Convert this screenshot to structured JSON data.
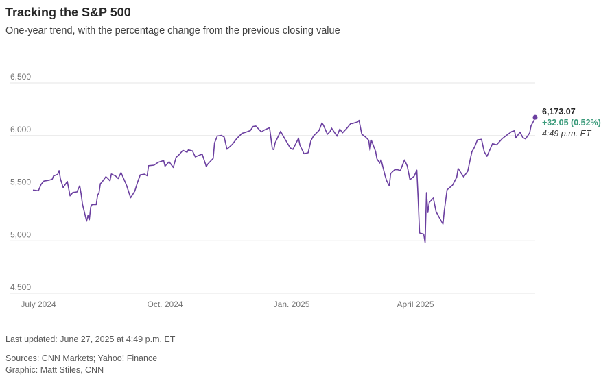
{
  "title": "Tracking the S&P 500",
  "subtitle": "One-year trend, with the percentage change from the previous closing value",
  "footer": {
    "updated": "Last updated: June 27, 2025 at 4:49 p.m. ET",
    "sources": "Sources: CNN Markets; Yahoo! Finance",
    "graphic": "Graphic: Matt Stiles, CNN"
  },
  "colors": {
    "line": "#6b3fa0",
    "positive": "#3a9a7a",
    "grid": "#e6e6e6"
  },
  "chart_data": {
    "type": "line",
    "title": "Tracking the S&P 500",
    "ylim": [
      4500,
      6500
    ],
    "yticks": [
      4500,
      5000,
      5500,
      6000,
      6500
    ],
    "ytick_labels": [
      "4,500",
      "5,000",
      "5,500",
      "6,000",
      "6,500"
    ],
    "xticks": [
      {
        "date": "2024-07-01",
        "label": "July 2024"
      },
      {
        "date": "2024-10-01",
        "label": "Oct. 2024"
      },
      {
        "date": "2025-01-01",
        "label": "Jan. 2025"
      },
      {
        "date": "2025-04-01",
        "label": "April 2025"
      }
    ],
    "grid": true,
    "series": [
      {
        "points": [
          [
            "2024-06-27",
            5482
          ],
          [
            "2024-07-01",
            5475
          ],
          [
            "2024-07-03",
            5537
          ],
          [
            "2024-07-05",
            5567
          ],
          [
            "2024-07-09",
            5576
          ],
          [
            "2024-07-11",
            5585
          ],
          [
            "2024-07-12",
            5615
          ],
          [
            "2024-07-15",
            5631
          ],
          [
            "2024-07-16",
            5667
          ],
          [
            "2024-07-17",
            5588
          ],
          [
            "2024-07-19",
            5505
          ],
          [
            "2024-07-22",
            5564
          ],
          [
            "2024-07-24",
            5427
          ],
          [
            "2024-07-26",
            5459
          ],
          [
            "2024-07-29",
            5464
          ],
          [
            "2024-07-31",
            5522
          ],
          [
            "2024-08-01",
            5446
          ],
          [
            "2024-08-02",
            5347
          ],
          [
            "2024-08-05",
            5186
          ],
          [
            "2024-08-06",
            5240
          ],
          [
            "2024-08-07",
            5199
          ],
          [
            "2024-08-08",
            5319
          ],
          [
            "2024-08-09",
            5344
          ],
          [
            "2024-08-12",
            5344
          ],
          [
            "2024-08-13",
            5434
          ],
          [
            "2024-08-14",
            5455
          ],
          [
            "2024-08-15",
            5543
          ],
          [
            "2024-08-16",
            5554
          ],
          [
            "2024-08-19",
            5608
          ],
          [
            "2024-08-20",
            5597
          ],
          [
            "2024-08-22",
            5570
          ],
          [
            "2024-08-23",
            5634
          ],
          [
            "2024-08-26",
            5616
          ],
          [
            "2024-08-28",
            5592
          ],
          [
            "2024-08-30",
            5648
          ],
          [
            "2024-09-03",
            5528
          ],
          [
            "2024-09-06",
            5408
          ],
          [
            "2024-09-09",
            5471
          ],
          [
            "2024-09-11",
            5554
          ],
          [
            "2024-09-13",
            5626
          ],
          [
            "2024-09-16",
            5633
          ],
          [
            "2024-09-18",
            5618
          ],
          [
            "2024-09-19",
            5713
          ],
          [
            "2024-09-23",
            5718
          ],
          [
            "2024-09-26",
            5745
          ],
          [
            "2024-09-30",
            5762
          ],
          [
            "2024-10-01",
            5709
          ],
          [
            "2024-10-04",
            5751
          ],
          [
            "2024-10-07",
            5696
          ],
          [
            "2024-10-09",
            5792
          ],
          [
            "2024-10-11",
            5815
          ],
          [
            "2024-10-14",
            5859
          ],
          [
            "2024-10-17",
            5841
          ],
          [
            "2024-10-18",
            5864
          ],
          [
            "2024-10-21",
            5853
          ],
          [
            "2024-10-23",
            5797
          ],
          [
            "2024-10-25",
            5808
          ],
          [
            "2024-10-28",
            5823
          ],
          [
            "2024-10-31",
            5705
          ],
          [
            "2024-11-01",
            5728
          ],
          [
            "2024-11-05",
            5782
          ],
          [
            "2024-11-06",
            5929
          ],
          [
            "2024-11-08",
            5995
          ],
          [
            "2024-11-11",
            6001
          ],
          [
            "2024-11-13",
            5985
          ],
          [
            "2024-11-15",
            5870
          ],
          [
            "2024-11-19",
            5917
          ],
          [
            "2024-11-22",
            5969
          ],
          [
            "2024-11-26",
            6021
          ],
          [
            "2024-11-29",
            6032
          ],
          [
            "2024-12-02",
            6047
          ],
          [
            "2024-12-04",
            6086
          ],
          [
            "2024-12-06",
            6090
          ],
          [
            "2024-12-10",
            6034
          ],
          [
            "2024-12-12",
            6051
          ],
          [
            "2024-12-16",
            6074
          ],
          [
            "2024-12-18",
            5872
          ],
          [
            "2024-12-19",
            5867
          ],
          [
            "2024-12-20",
            5930
          ],
          [
            "2024-12-24",
            6040
          ],
          [
            "2024-12-27",
            5970
          ],
          [
            "2024-12-31",
            5882
          ],
          [
            "2025-01-02",
            5869
          ],
          [
            "2025-01-06",
            5975
          ],
          [
            "2025-01-07",
            5909
          ],
          [
            "2025-01-10",
            5827
          ],
          [
            "2025-01-13",
            5836
          ],
          [
            "2025-01-15",
            5950
          ],
          [
            "2025-01-17",
            5997
          ],
          [
            "2025-01-21",
            6049
          ],
          [
            "2025-01-23",
            6119
          ],
          [
            "2025-01-24",
            6101
          ],
          [
            "2025-01-27",
            6012
          ],
          [
            "2025-01-29",
            6039
          ],
          [
            "2025-01-30",
            6071
          ],
          [
            "2025-02-03",
            5994
          ],
          [
            "2025-02-05",
            6061
          ],
          [
            "2025-02-07",
            6026
          ],
          [
            "2025-02-10",
            6066
          ],
          [
            "2025-02-13",
            6115
          ],
          [
            "2025-02-14",
            6114
          ],
          [
            "2025-02-18",
            6129
          ],
          [
            "2025-02-19",
            6144
          ],
          [
            "2025-02-21",
            6013
          ],
          [
            "2025-02-24",
            5983
          ],
          [
            "2025-02-26",
            5956
          ],
          [
            "2025-02-27",
            5861
          ],
          [
            "2025-02-28",
            5955
          ],
          [
            "2025-03-03",
            5849
          ],
          [
            "2025-03-04",
            5778
          ],
          [
            "2025-03-06",
            5738
          ],
          [
            "2025-03-07",
            5770
          ],
          [
            "2025-03-10",
            5615
          ],
          [
            "2025-03-11",
            5572
          ],
          [
            "2025-03-13",
            5522
          ],
          [
            "2025-03-14",
            5639
          ],
          [
            "2025-03-17",
            5675
          ],
          [
            "2025-03-19",
            5675
          ],
          [
            "2025-03-21",
            5667
          ],
          [
            "2025-03-24",
            5768
          ],
          [
            "2025-03-26",
            5712
          ],
          [
            "2025-03-28",
            5581
          ],
          [
            "2025-03-31",
            5612
          ],
          [
            "2025-04-02",
            5671
          ],
          [
            "2025-04-03",
            5397
          ],
          [
            "2025-04-04",
            5074
          ],
          [
            "2025-04-07",
            5062
          ],
          [
            "2025-04-08",
            4982
          ],
          [
            "2025-04-09",
            5457
          ],
          [
            "2025-04-10",
            5268
          ],
          [
            "2025-04-11",
            5363
          ],
          [
            "2025-04-14",
            5406
          ],
          [
            "2025-04-16",
            5276
          ],
          [
            "2025-04-21",
            5158
          ],
          [
            "2025-04-22",
            5287
          ],
          [
            "2025-04-24",
            5484
          ],
          [
            "2025-04-28",
            5529
          ],
          [
            "2025-05-01",
            5604
          ],
          [
            "2025-05-02",
            5687
          ],
          [
            "2025-05-06",
            5607
          ],
          [
            "2025-05-09",
            5660
          ],
          [
            "2025-05-12",
            5844
          ],
          [
            "2025-05-14",
            5892
          ],
          [
            "2025-05-16",
            5958
          ],
          [
            "2025-05-19",
            5964
          ],
          [
            "2025-05-21",
            5845
          ],
          [
            "2025-05-23",
            5802
          ],
          [
            "2025-05-27",
            5922
          ],
          [
            "2025-05-30",
            5912
          ],
          [
            "2025-06-03",
            5970
          ],
          [
            "2025-06-06",
            6000
          ],
          [
            "2025-06-10",
            6038
          ],
          [
            "2025-06-12",
            6045
          ],
          [
            "2025-06-13",
            5977
          ],
          [
            "2025-06-16",
            6033
          ],
          [
            "2025-06-18",
            5981
          ],
          [
            "2025-06-20",
            5968
          ],
          [
            "2025-06-23",
            6025
          ],
          [
            "2025-06-24",
            6092
          ],
          [
            "2025-06-26",
            6141
          ],
          [
            "2025-06-27",
            6173.07
          ]
        ],
        "last_value": "6,173.07",
        "last_change": "+32.05 (0.52%)",
        "last_time": "4:49 p.m. ET"
      }
    ]
  }
}
